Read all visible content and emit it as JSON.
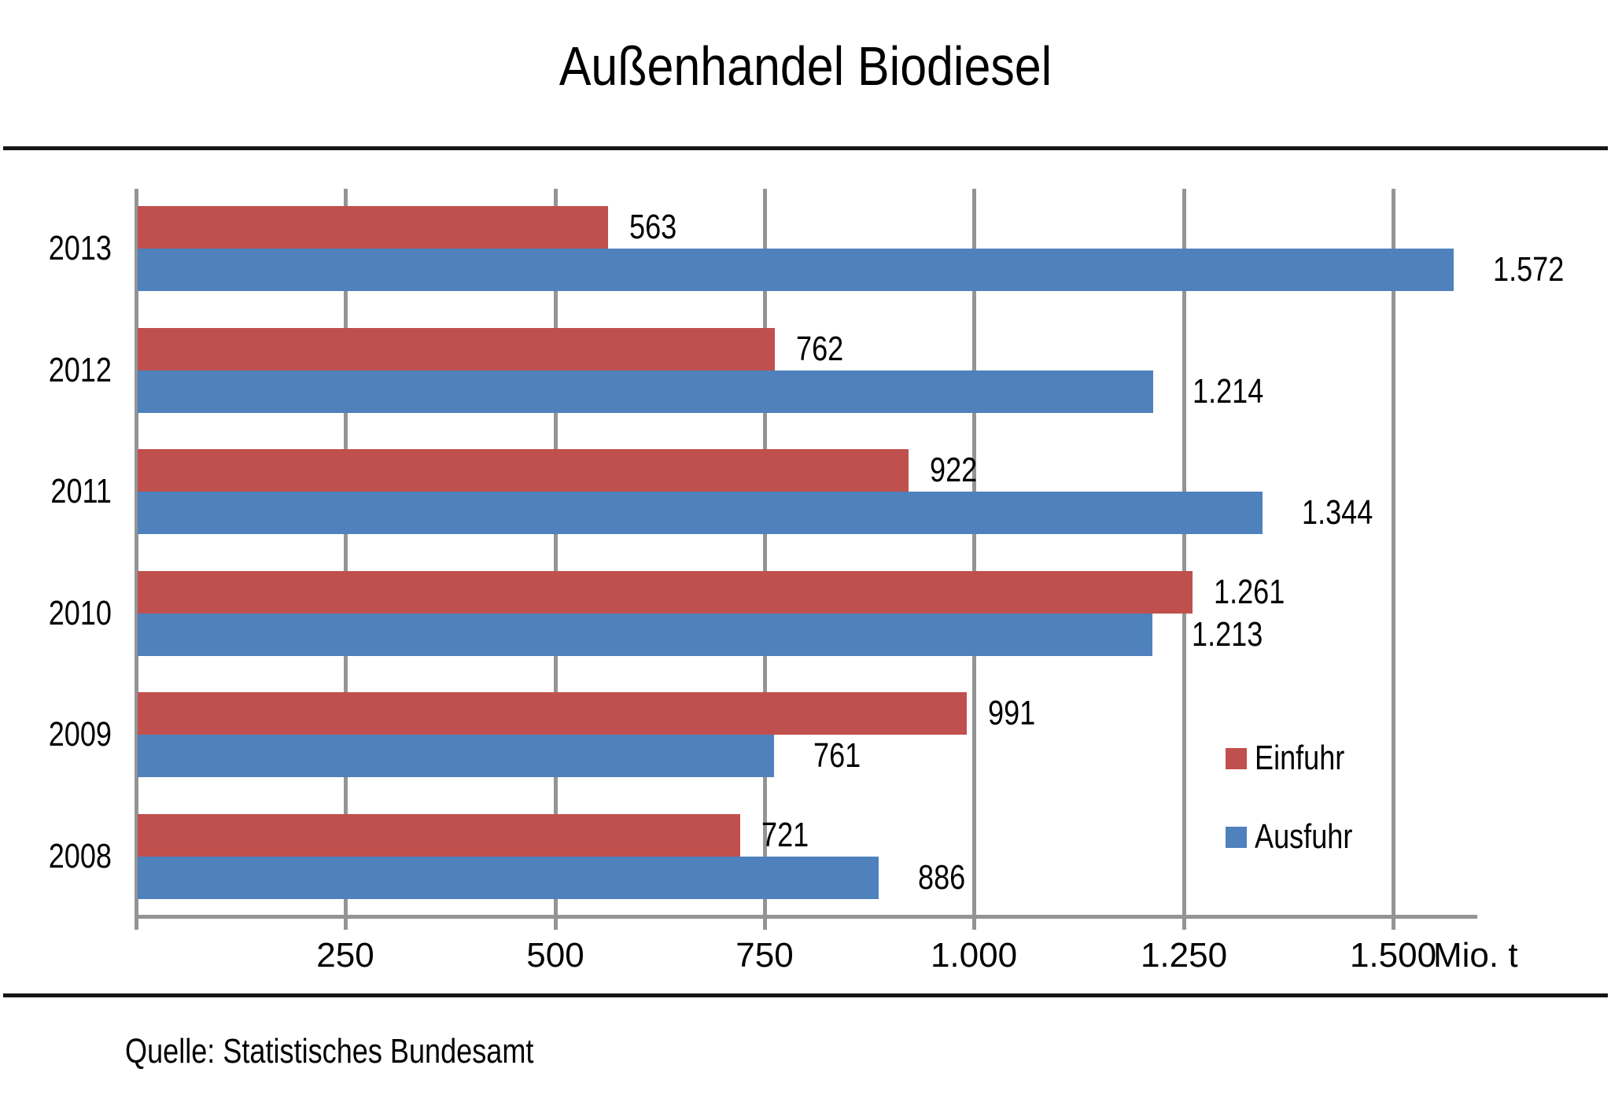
{
  "title": "Außenhandel Biodiesel",
  "source": "Quelle: Statistisches Bundesamt",
  "axis": {
    "unit_label": "Mio. t",
    "tick_labels": [
      "250",
      "500",
      "750",
      "1.000",
      "1.250",
      "1.500"
    ],
    "tick_values": [
      250,
      500,
      750,
      1000,
      1250,
      1500
    ],
    "max_value": 1600
  },
  "colors": {
    "einfuhr": "#C0504D",
    "ausfuhr": "#4F81BD",
    "grid": "#949494"
  },
  "legend": {
    "items": [
      {
        "label": "Einfuhr",
        "color": "#C0504D"
      },
      {
        "label": "Ausfuhr",
        "color": "#4F81BD"
      }
    ]
  },
  "chart_data": {
    "type": "bar",
    "orientation": "horizontal",
    "title": "Außenhandel Biodiesel",
    "categories": [
      "2013",
      "2012",
      "2011",
      "2010",
      "2009",
      "2008"
    ],
    "series": [
      {
        "name": "Einfuhr",
        "color": "#C0504D",
        "values": [
          563,
          762,
          922,
          1261,
          991,
          721
        ],
        "labels": [
          "563",
          "762",
          "922",
          "1.261",
          "991",
          "721"
        ]
      },
      {
        "name": "Ausfuhr",
        "color": "#4F81BD",
        "values": [
          1572,
          1214,
          1344,
          1213,
          761,
          886
        ],
        "labels": [
          "1.572",
          "1.214",
          "1.344",
          "1.213",
          "761",
          "886"
        ]
      }
    ],
    "xlabel": "Mio. t",
    "ylabel": "",
    "xlim": [
      0,
      1600
    ],
    "xticks": [
      250,
      500,
      750,
      1000,
      1250,
      1500
    ],
    "xtick_labels": [
      "250",
      "500",
      "750",
      "1.000",
      "1.250",
      "1.500"
    ],
    "grid": true,
    "legend_position": "right-middle",
    "source": "Quelle: Statistisches Bundesamt"
  }
}
